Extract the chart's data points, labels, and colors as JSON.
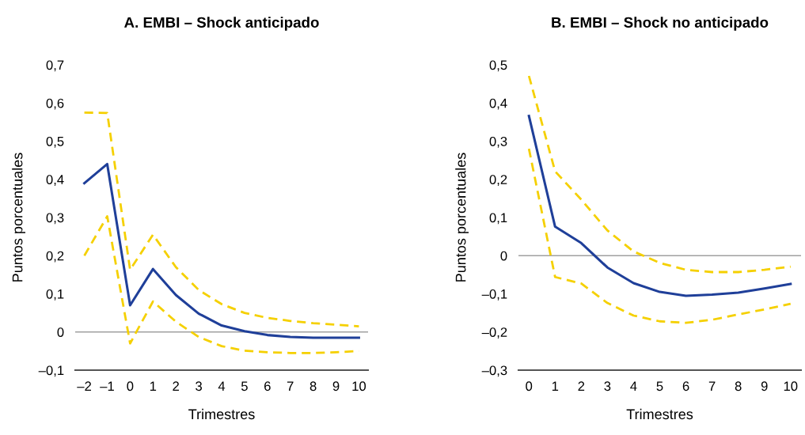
{
  "chart_data": [
    {
      "type": "line",
      "title": "A. EMBI – Shock anticipado",
      "xlabel": "Trimestres",
      "ylabel": "Puntos porcentuales",
      "categories": [
        "–2",
        "–1",
        "0",
        "1",
        "2",
        "3",
        "4",
        "5",
        "6",
        "7",
        "8",
        "9",
        "10"
      ],
      "series": [
        {
          "color": "#f5d000",
          "line_style": "dashed",
          "values": [
            0.575,
            0.574,
            0.163,
            0.255,
            0.17,
            0.11,
            0.073,
            0.05,
            0.037,
            0.029,
            0.023,
            0.019,
            0.015
          ]
        },
        {
          "color": "#f5d000",
          "line_style": "dashed",
          "values": [
            0.2,
            0.303,
            -0.03,
            0.08,
            0.027,
            -0.013,
            -0.037,
            -0.049,
            -0.053,
            -0.055,
            -0.055,
            -0.053,
            -0.05
          ]
        },
        {
          "color": "#1f3f99",
          "line_style": "solid",
          "values": [
            0.39,
            0.44,
            0.07,
            0.165,
            0.097,
            0.048,
            0.017,
            0.002,
            -0.008,
            -0.013,
            -0.015,
            -0.015,
            -0.015
          ]
        }
      ],
      "ylim": [
        -0.1,
        0.7
      ],
      "yticks": [
        {
          "value": -0.1,
          "label": "–0,1"
        },
        0,
        {
          "value": 0.1,
          "label": "0,1"
        },
        {
          "value": 0.2,
          "label": "0,2"
        },
        {
          "value": 0.3,
          "label": "0,3"
        },
        {
          "value": 0.4,
          "label": "0,4"
        },
        {
          "value": 0.5,
          "label": "0,5"
        },
        {
          "value": 0.6,
          "label": "0,6"
        },
        {
          "value": 0.7,
          "label": "0,7"
        }
      ],
      "ref_lines": [
        {
          "axis": "y",
          "value": 0,
          "color": "#a0a0a0"
        }
      ],
      "grid": false,
      "legend": false
    },
    {
      "type": "line",
      "title": "B. EMBI – Shock no anticipado",
      "xlabel": "Trimestres",
      "ylabel": "Puntos porcentuales",
      "categories": [
        "0",
        "1",
        "2",
        "3",
        "4",
        "5",
        "6",
        "7",
        "8",
        "9",
        "10"
      ],
      "series": [
        {
          "color": "#f5d000",
          "line_style": "dashed",
          "values": [
            0.471,
            0.221,
            0.147,
            0.066,
            0.011,
            -0.019,
            -0.037,
            -0.043,
            -0.043,
            -0.037,
            -0.029
          ]
        },
        {
          "color": "#f5d000",
          "line_style": "dashed",
          "values": [
            0.28,
            -0.056,
            -0.073,
            -0.124,
            -0.157,
            -0.172,
            -0.176,
            -0.168,
            -0.154,
            -0.141,
            -0.126
          ]
        },
        {
          "color": "#1f3f99",
          "line_style": "solid",
          "values": [
            0.366,
            0.076,
            0.033,
            -0.031,
            -0.072,
            -0.095,
            -0.105,
            -0.102,
            -0.097,
            -0.086,
            -0.074
          ]
        }
      ],
      "ylim": [
        -0.3,
        0.5
      ],
      "yticks": [
        {
          "value": -0.3,
          "label": "–0,3"
        },
        {
          "value": -0.2,
          "label": "–0,2"
        },
        {
          "value": -0.1,
          "label": "–0,1"
        },
        0,
        {
          "value": 0.1,
          "label": "0,1"
        },
        {
          "value": 0.2,
          "label": "0,2"
        },
        {
          "value": 0.3,
          "label": "0,3"
        },
        {
          "value": 0.4,
          "label": "0,4"
        },
        {
          "value": 0.5,
          "label": "0,5"
        }
      ],
      "ref_lines": [
        {
          "axis": "y",
          "value": 0,
          "color": "#a0a0a0"
        }
      ],
      "grid": false,
      "legend": false
    }
  ]
}
